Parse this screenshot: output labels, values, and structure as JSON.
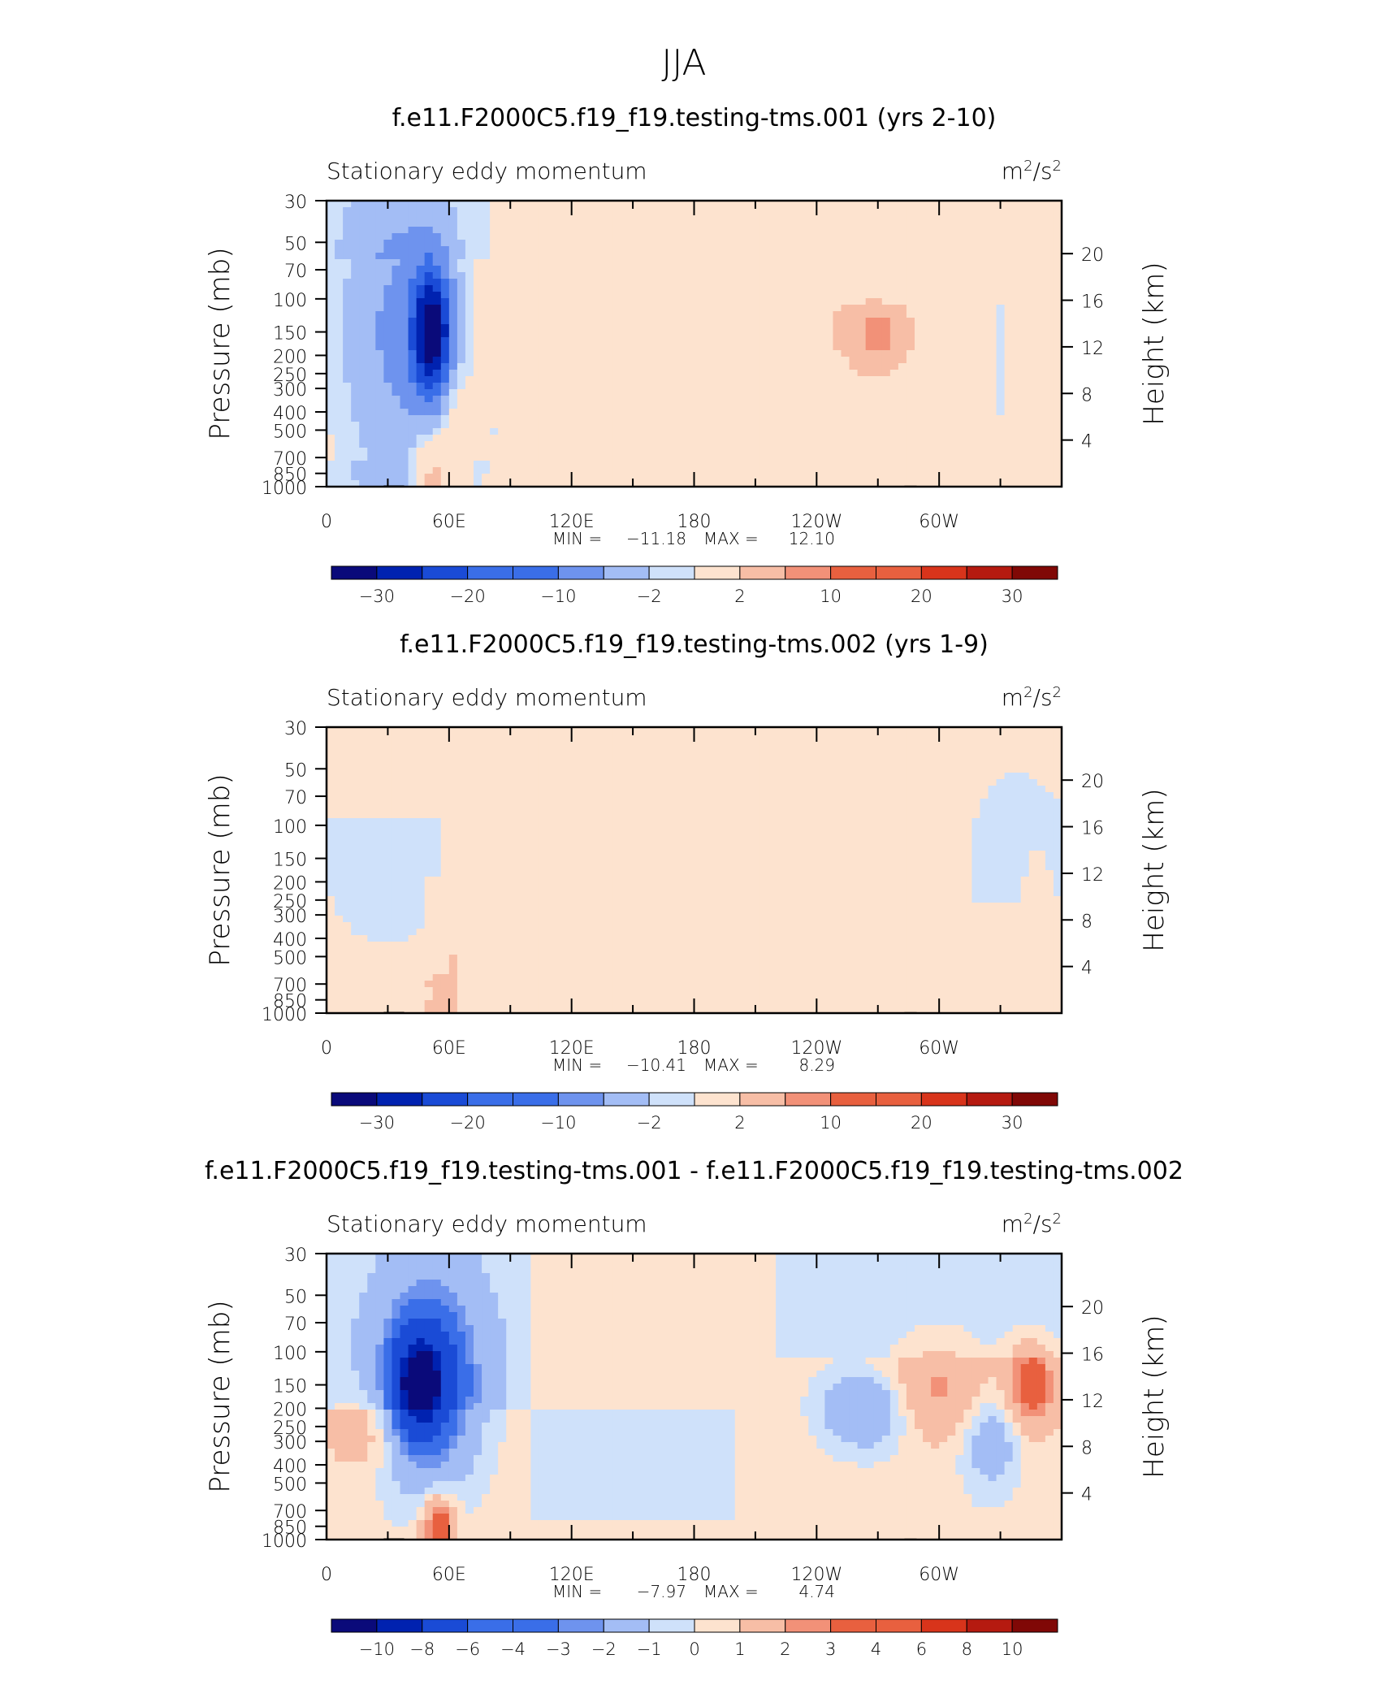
{
  "figure": {
    "title": "JJA"
  },
  "palette": {
    "colors": [
      "#0a0a7a",
      "#0022b0",
      "#1a4bd6",
      "#3a6ee8",
      "#6e93ee",
      "#a3bdf5",
      "#cfe1fa",
      "#fde3cf",
      "#f7bea6",
      "#f29178",
      "#e8603f",
      "#d8341b",
      "#b51a10",
      "#800806"
    ],
    "missing": "#ffffff",
    "topo": "#000000"
  },
  "chart_data": [
    {
      "type": "contour",
      "title": "f.e11.F2000C5.f19_f19.testing-tms.001 (yrs 2-10)",
      "left_label": "Stationary eddy momentum",
      "units_base": "m",
      "units_exp": "2",
      "units_mid": "/s",
      "units_exp2": "2",
      "ylabel": "Pressure (mb)",
      "ylabel_right": "Height (km)",
      "pressure_ticks": [
        "30",
        "50",
        "70",
        "100",
        "150",
        "200",
        "250",
        "300",
        "400",
        "500",
        "700",
        "850",
        "1000"
      ],
      "height_ticks": [
        "4",
        "8",
        "12",
        "16",
        "20"
      ],
      "lon_ticks": [
        "0",
        "60E",
        "120E",
        "180",
        "120W",
        "60W"
      ],
      "stats": {
        "min_label": "MIN =",
        "min": "−11.18",
        "max_label": "MAX =",
        "max": "12.10"
      },
      "levels": [
        -30,
        -25,
        -20,
        -15,
        -10,
        -5,
        -2,
        2,
        5,
        10,
        15,
        20,
        25,
        30
      ],
      "colorbar_labels": [
        "−30",
        "−20",
        "−10",
        "−2",
        "2",
        "10",
        "20",
        "30"
      ],
      "colorbar_label_positions": [
        1,
        3,
        5,
        7,
        9,
        11,
        13,
        15
      ],
      "base_field": [
        {
          "lon": [
            0,
            360
          ],
          "p": [
            30,
            1000
          ],
          "value": -1
        },
        {
          "lon": [
            0,
            80
          ],
          "p": [
            60,
            700
          ],
          "value": 1
        },
        {
          "lon": [
            80,
            135
          ],
          "p": [
            30,
            500
          ],
          "value": 1
        },
        {
          "lon": [
            150,
            225
          ],
          "p": [
            30,
            110
          ],
          "value": 1
        },
        {
          "lon": [
            150,
            300
          ],
          "p": [
            110,
            700
          ],
          "value": 1
        },
        {
          "lon": [
            310,
            360
          ],
          "p": [
            30,
            1000
          ],
          "value": 1
        }
      ],
      "blobs": [
        {
          "lon": 35,
          "p": 150,
          "rx": 32,
          "ry": 0.22,
          "value": -12
        },
        {
          "lon": 52,
          "p": 150,
          "rx": 10,
          "ry": 0.08,
          "value": -28
        },
        {
          "lon": 52,
          "p": 900,
          "rx": 10,
          "ry": 0.05,
          "value": 12
        },
        {
          "lon": 63,
          "p": 400,
          "rx": 7,
          "ry": 0.08,
          "value": 4
        },
        {
          "lon": 250,
          "p": 170,
          "rx": 55,
          "ry": 0.1,
          "value": 4
        },
        {
          "lon": 270,
          "p": 160,
          "rx": 14,
          "ry": 0.05,
          "value": 8
        },
        {
          "lon": 330,
          "p": 200,
          "rx": 6,
          "ry": 0.16,
          "value": -4
        },
        {
          "lon": 347,
          "p": 220,
          "rx": 5,
          "ry": 0.1,
          "value": 3
        },
        {
          "lon": 265,
          "p": 250,
          "rx": 25,
          "ry": 0.05,
          "value": -2
        }
      ]
    },
    {
      "type": "contour",
      "title": "f.e11.F2000C5.f19_f19.testing-tms.002 (yrs 1-9)",
      "left_label": "Stationary eddy momentum",
      "units_base": "m",
      "units_exp": "2",
      "units_mid": "/s",
      "units_exp2": "2",
      "ylabel": "Pressure (mb)",
      "ylabel_right": "Height (km)",
      "pressure_ticks": [
        "30",
        "50",
        "70",
        "100",
        "150",
        "200",
        "250",
        "300",
        "400",
        "500",
        "700",
        "850",
        "1000"
      ],
      "height_ticks": [
        "4",
        "8",
        "12",
        "16",
        "20"
      ],
      "lon_ticks": [
        "0",
        "60E",
        "120E",
        "180",
        "120W",
        "60W"
      ],
      "stats": {
        "min_label": "MIN =",
        "min": "−10.41",
        "max_label": "MAX =",
        "max": "8.29"
      },
      "levels": [
        -30,
        -25,
        -20,
        -15,
        -10,
        -5,
        -2,
        2,
        5,
        10,
        15,
        20,
        25,
        30
      ],
      "colorbar_labels": [
        "−30",
        "−20",
        "−10",
        "−2",
        "2",
        "10",
        "20",
        "30"
      ],
      "colorbar_label_positions": [
        1,
        3,
        5,
        7,
        9,
        11,
        13,
        15
      ],
      "base_field": [
        {
          "lon": [
            0,
            360
          ],
          "p": [
            30,
            1000
          ],
          "value": -1
        },
        {
          "lon": [
            0,
            90
          ],
          "p": [
            30,
            90
          ],
          "value": 1
        },
        {
          "lon": [
            50,
            125
          ],
          "p": [
            190,
            700
          ],
          "value": 1
        },
        {
          "lon": [
            125,
            230
          ],
          "p": [
            30,
            90
          ],
          "value": 1
        },
        {
          "lon": [
            170,
            300
          ],
          "p": [
            100,
            600
          ],
          "value": 1
        },
        {
          "lon": [
            300,
            360
          ],
          "p": [
            250,
            1000
          ],
          "value": 1
        }
      ],
      "blobs": [
        {
          "lon": 30,
          "p": 150,
          "rx": 30,
          "ry": 0.1,
          "value": -3
        },
        {
          "lon": 55,
          "p": 900,
          "rx": 10,
          "ry": 0.04,
          "value": 8
        },
        {
          "lon": 63,
          "p": 400,
          "rx": 6,
          "ry": 0.09,
          "value": 4
        },
        {
          "lon": 83,
          "p": 120,
          "rx": 4,
          "ry": 0.08,
          "value": 3
        },
        {
          "lon": 230,
          "p": 170,
          "rx": 45,
          "ry": 0.1,
          "value": 3
        },
        {
          "lon": 340,
          "p": 150,
          "rx": 25,
          "ry": 0.1,
          "value": -3
        },
        {
          "lon": 347,
          "p": 240,
          "rx": 8,
          "ry": 0.08,
          "value": 3
        }
      ]
    },
    {
      "type": "contour",
      "title": "f.e11.F2000C5.f19_f19.testing-tms.001 - f.e11.F2000C5.f19_f19.testing-tms.002",
      "left_label": "Stationary eddy momentum",
      "units_base": "m",
      "units_exp": "2",
      "units_mid": "/s",
      "units_exp2": "2",
      "ylabel": "Pressure (mb)",
      "ylabel_right": "Height (km)",
      "pressure_ticks": [
        "30",
        "50",
        "70",
        "100",
        "150",
        "200",
        "250",
        "300",
        "400",
        "500",
        "700",
        "850",
        "1000"
      ],
      "height_ticks": [
        "4",
        "8",
        "12",
        "16",
        "20"
      ],
      "lon_ticks": [
        "0",
        "60E",
        "120E",
        "180",
        "120W",
        "60W"
      ],
      "stats": {
        "min_label": "MIN =",
        "min": "−7.97",
        "max_label": "MAX =",
        "max": "4.74"
      },
      "levels": [
        -12,
        -10,
        -8,
        -6,
        -4,
        -3,
        -2,
        -1,
        0,
        1,
        2,
        3,
        4,
        6,
        8,
        10,
        12
      ],
      "colorbar_labels": [
        "−10",
        "−8",
        "−6",
        "−4",
        "−3",
        "−2",
        "−1",
        "0",
        "1",
        "2",
        "3",
        "4",
        "6",
        "8",
        "10"
      ],
      "colorbar_label_positions": [
        1,
        2,
        3,
        4,
        5,
        6,
        7,
        8,
        9,
        10,
        11,
        12,
        13,
        14,
        15
      ],
      "base_field": [
        {
          "lon": [
            0,
            360
          ],
          "p": [
            30,
            1000
          ],
          "value": 0.5
        },
        {
          "lon": [
            0,
            100
          ],
          "p": [
            30,
            200
          ],
          "value": -0.5
        },
        {
          "lon": [
            100,
            200
          ],
          "p": [
            200,
            800
          ],
          "value": -0.5
        },
        {
          "lon": [
            220,
            360
          ],
          "p": [
            30,
            110
          ],
          "value": -0.5
        }
      ],
      "blobs": [
        {
          "lon": 50,
          "p": 145,
          "rx": 24,
          "ry": 0.12,
          "value": -7
        },
        {
          "lon": 45,
          "p": 150,
          "rx": 12,
          "ry": 0.06,
          "value": -9
        },
        {
          "lon": 55,
          "p": 880,
          "rx": 8,
          "ry": 0.04,
          "value": 6
        },
        {
          "lon": 20,
          "p": 260,
          "rx": 18,
          "ry": 0.05,
          "value": 2
        },
        {
          "lon": 265,
          "p": 200,
          "rx": 22,
          "ry": 0.05,
          "value": -4
        },
        {
          "lon": 300,
          "p": 160,
          "rx": 30,
          "ry": 0.06,
          "value": 3
        },
        {
          "lon": 345,
          "p": 150,
          "rx": 12,
          "ry": 0.05,
          "value": 5
        },
        {
          "lon": 325,
          "p": 270,
          "rx": 15,
          "ry": 0.07,
          "value": -3
        }
      ]
    }
  ]
}
